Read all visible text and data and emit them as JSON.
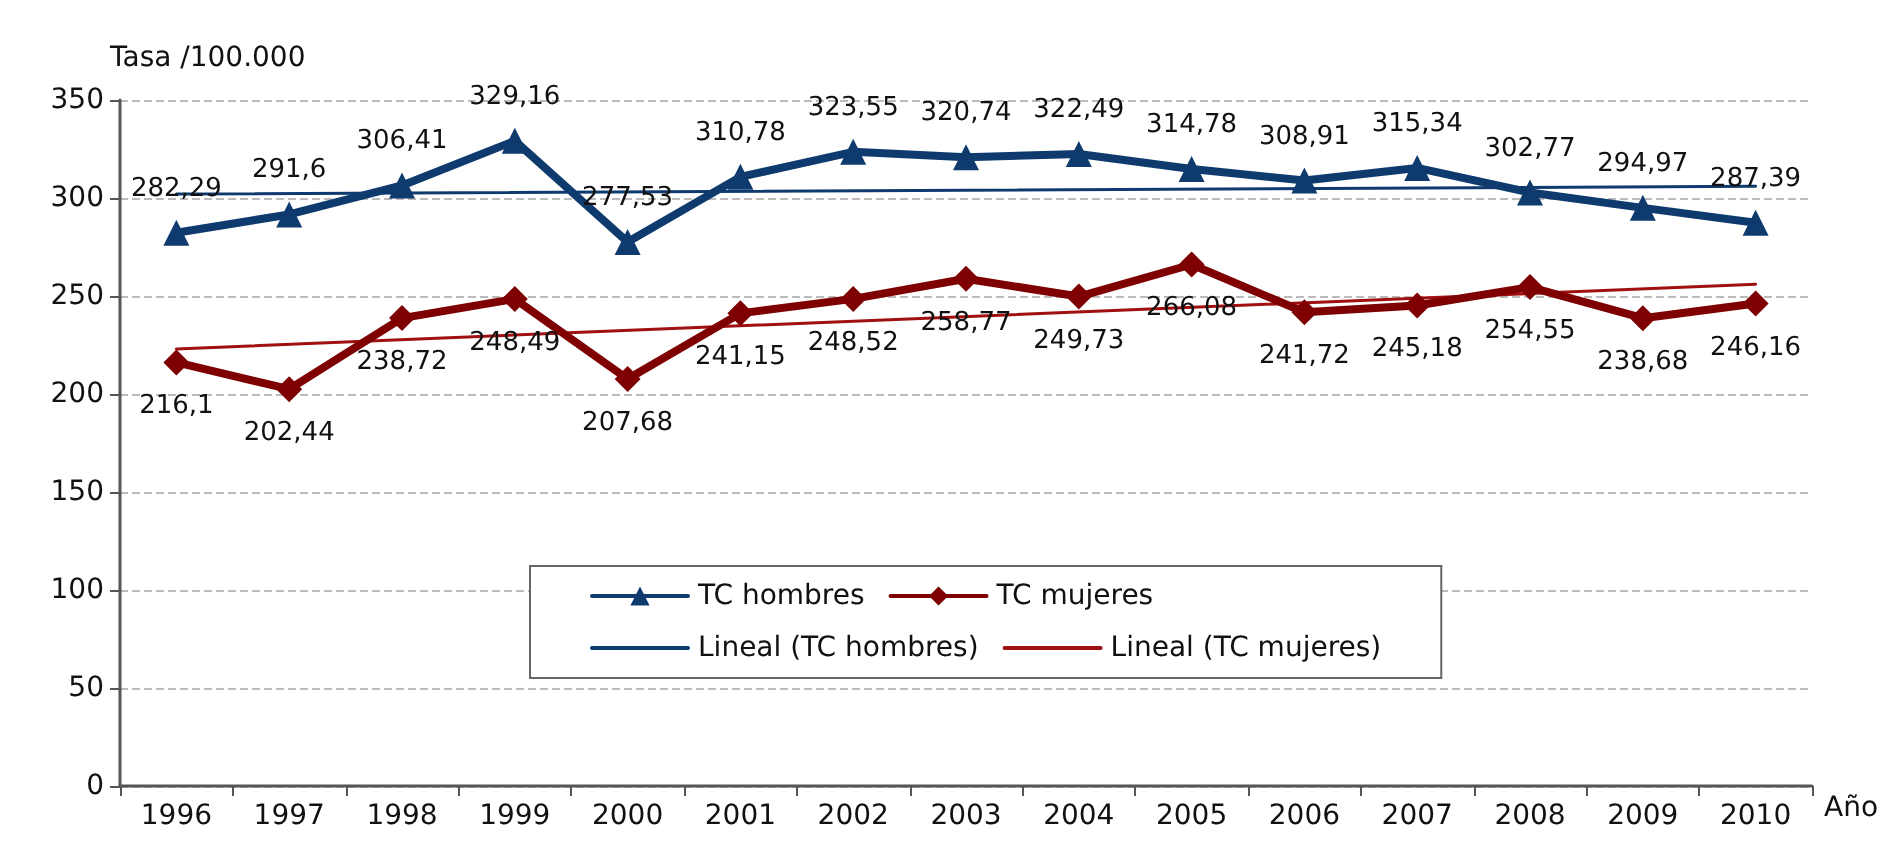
{
  "chart_data": {
    "type": "line",
    "ylabel": "Tasa /100.000",
    "xlabel": "Año",
    "categories": [
      "1996",
      "1997",
      "1998",
      "1999",
      "2000",
      "2001",
      "2002",
      "2003",
      "2004",
      "2005",
      "2006",
      "2007",
      "2008",
      "2009",
      "2010"
    ],
    "series": [
      {
        "name": "TC hombres",
        "color": "#0e3a6e",
        "marker": "triangle",
        "values": [
          282.29,
          291.6,
          306.41,
          329.16,
          277.53,
          310.78,
          323.55,
          320.74,
          322.49,
          314.78,
          308.91,
          315.34,
          302.77,
          294.97,
          287.39
        ],
        "value_labels": [
          "282,29",
          "291,6",
          "306,41",
          "329,16",
          "277,53",
          "310,78",
          "323,55",
          "320,74",
          "322,49",
          "314,78",
          "308,91",
          "315,34",
          "302,77",
          "294,97",
          "287,39"
        ]
      },
      {
        "name": "TC mujeres",
        "color": "#7f0000",
        "marker": "diamond",
        "values": [
          216.1,
          202.44,
          238.72,
          248.49,
          207.68,
          241.15,
          248.52,
          258.77,
          249.73,
          266.08,
          241.72,
          245.18,
          254.55,
          238.68,
          246.16
        ],
        "value_labels": [
          "216,1",
          "202,44",
          "238,72",
          "248,49",
          "207,68",
          "241,15",
          "248,52",
          "258,77",
          "249,73",
          "266,08",
          "241,72",
          "245,18",
          "254,55",
          "238,68",
          "246,16"
        ]
      },
      {
        "name": "Lineal (TC hombres)",
        "color": "#0e3a6e",
        "marker": "none",
        "values": [
          302,
          null,
          null,
          null,
          null,
          null,
          null,
          null,
          null,
          null,
          null,
          null,
          null,
          null,
          306
        ]
      },
      {
        "name": "Lineal (TC mujeres)",
        "color": "#a01010",
        "marker": "none",
        "values": [
          223,
          null,
          null,
          null,
          null,
          null,
          null,
          null,
          null,
          null,
          null,
          null,
          null,
          null,
          256
        ]
      }
    ],
    "ylim": [
      0,
      350
    ],
    "yticks": [
      0,
      50,
      100,
      150,
      200,
      250,
      300,
      350
    ],
    "grid": "y",
    "legend": "bottom"
  }
}
